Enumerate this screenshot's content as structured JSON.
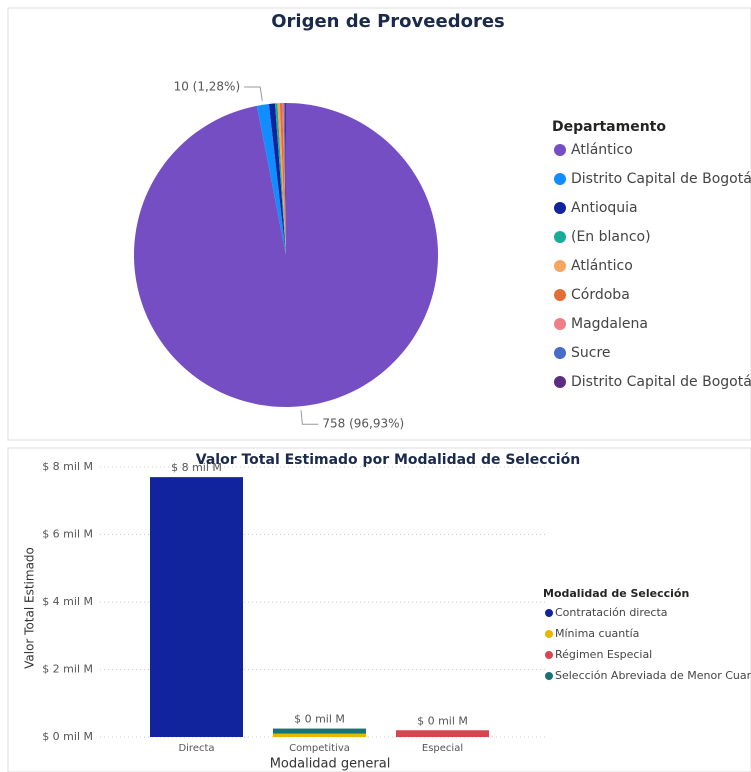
{
  "chart_data": [
    {
      "type": "pie",
      "title": "Origen de Proveedores",
      "legend_title": "Departamento",
      "categories": [
        "Atlántico",
        "Distrito Capital de Bogotá",
        "Antioquia",
        "(En blanco)",
        "Atlántico",
        "Córdoba",
        "Magdalena",
        "Sucre",
        "Distrito Capital de Bogotá"
      ],
      "values": [
        758,
        10,
        5,
        2,
        2,
        2,
        1,
        1,
        1
      ],
      "value_labels": [
        "758 (96,93%)",
        "10 (1,28%)",
        null,
        null,
        null,
        null,
        null,
        null,
        null
      ],
      "colors": [
        "#744ec2",
        "#118dff",
        "#12239e",
        "#1aab9b",
        "#f5a660",
        "#e66c37",
        "#f07f85",
        "#4a6cc9",
        "#5a2d82"
      ],
      "legend": "right"
    },
    {
      "type": "bar",
      "stacked": true,
      "title": "Valor Total Estimado por Modalidad de Selección",
      "x_label": "Modalidad general",
      "y_label": "Valor Total Estimado",
      "legend_title": "Modalidad de Selección",
      "categories": [
        "Directa",
        "Competitiva",
        "Especial"
      ],
      "series": [
        {
          "name": "Contratación directa",
          "color": "#12239e",
          "values": [
            7.7,
            0,
            0
          ],
          "value_labels": [
            "$ 8 mil M",
            null,
            null
          ]
        },
        {
          "name": "Mínima cuantía",
          "color": "#e6b800",
          "values": [
            0,
            0.1,
            0
          ],
          "value_labels": [
            null,
            null,
            null
          ]
        },
        {
          "name": "Régimen Especial",
          "color": "#d64550",
          "values": [
            0,
            0,
            0.2
          ],
          "value_labels": [
            null,
            null,
            "$ 0 mil M"
          ]
        },
        {
          "name": "Selección Abreviada de Menor Cuantía",
          "color": "#197278",
          "values": [
            0,
            0.15,
            0
          ],
          "value_labels": [
            null,
            "$ 0 mil M",
            null
          ]
        }
      ],
      "ylim": [
        0,
        8
      ],
      "yticks": [
        {
          "value": 0,
          "label": "$ 0 mil M"
        },
        {
          "value": 2,
          "label": "$ 2 mil M"
        },
        {
          "value": 4,
          "label": "$ 4 mil M"
        },
        {
          "value": 6,
          "label": "$ 6 mil M"
        },
        {
          "value": 8,
          "label": "$ 8 mil M"
        }
      ],
      "grid": true,
      "legend": "right"
    }
  ]
}
